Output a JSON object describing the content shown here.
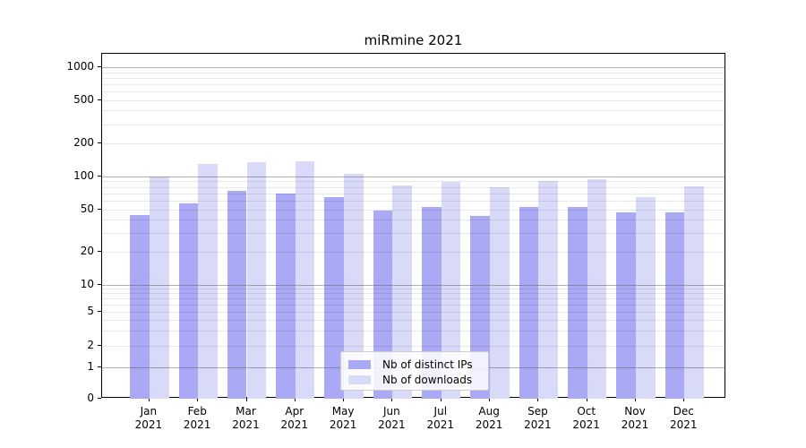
{
  "chart_data": {
    "type": "bar",
    "title": "miRmine 2021",
    "months": [
      "Jan",
      "Feb",
      "Mar",
      "Apr",
      "May",
      "Jun",
      "Jul",
      "Aug",
      "Sep",
      "Oct",
      "Nov",
      "Dec"
    ],
    "year": "2021",
    "series": [
      {
        "name": "Nb of distinct IPs",
        "color": "#a9a9f5",
        "values": [
          44,
          57,
          74,
          70,
          64,
          49,
          52,
          43,
          52,
          52,
          47,
          47
        ]
      },
      {
        "name": "Nb of downloads",
        "color": "#d9d9f8",
        "values": [
          100,
          130,
          134,
          136,
          106,
          83,
          89,
          80,
          91,
          94,
          64,
          81
        ]
      }
    ],
    "yticks": [
      0,
      1,
      2,
      5,
      10,
      20,
      50,
      100,
      200,
      500,
      1000
    ],
    "yscale": "symlog",
    "ylim": [
      0,
      1330
    ],
    "grid": true,
    "legend_position": "lower center"
  }
}
